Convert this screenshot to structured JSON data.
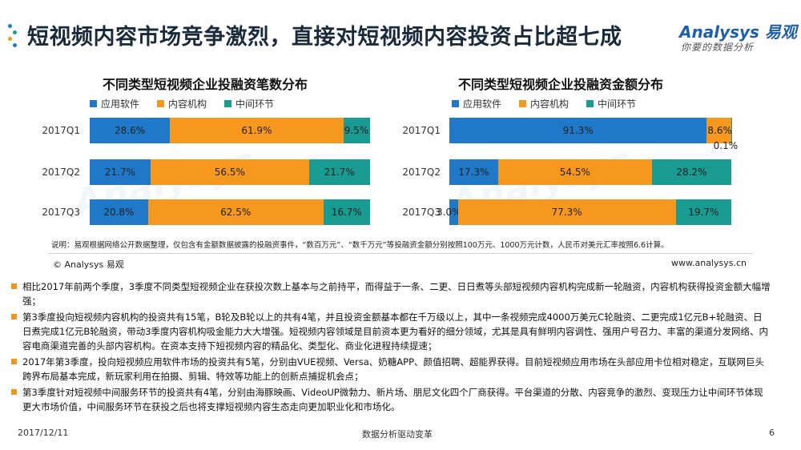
{
  "header": {
    "title": "短视频内容市场竞争激烈，直接对短视频内容投资占比超七成",
    "logo_text": "Analysys 易观",
    "logo_tagline": "你要的数据分析"
  },
  "colors": {
    "app": "#1f78c8",
    "content": "#f5981d",
    "middle": "#1a9b91",
    "accent": "#f0961e"
  },
  "legend": [
    "应用软件",
    "内容机构",
    "中间环节"
  ],
  "chart_data": [
    {
      "type": "bar",
      "orientation": "horizontal",
      "stacked": "percent",
      "title": "不同类型短视频企业投融资笔数分布",
      "categories": [
        "2017Q1",
        "2017Q2",
        "2017Q3"
      ],
      "series": [
        {
          "name": "应用软件",
          "values": [
            28.6,
            21.7,
            20.8
          ],
          "labels": [
            "28.6%",
            "21.7%",
            "20.8%"
          ]
        },
        {
          "name": "内容机构",
          "values": [
            61.9,
            56.5,
            62.5
          ],
          "labels": [
            "61.9%",
            "56.5%",
            "62.5%"
          ]
        },
        {
          "name": "中间环节",
          "values": [
            9.5,
            21.7,
            16.7
          ],
          "labels": [
            "9.5%",
            "21.7%",
            "16.7%"
          ]
        }
      ],
      "xlim": [
        0,
        100
      ],
      "legend_position": "top"
    },
    {
      "type": "bar",
      "orientation": "horizontal",
      "stacked": "percent",
      "title": "不同类型短视频企业投融资金额分布",
      "categories": [
        "2017Q1",
        "2017Q2",
        "2017Q3"
      ],
      "series": [
        {
          "name": "应用软件",
          "values": [
            91.3,
            17.3,
            3.0
          ],
          "labels": [
            "91.3%",
            "17.3%",
            "3.0%"
          ]
        },
        {
          "name": "内容机构",
          "values": [
            8.6,
            54.5,
            77.3
          ],
          "labels": [
            "8.6%",
            "54.5%",
            "77.3%"
          ]
        },
        {
          "name": "中间环节",
          "values": [
            0.1,
            28.2,
            19.7
          ],
          "labels": [
            "0.1%",
            "28.2%",
            "19.7%"
          ]
        }
      ],
      "xlim": [
        0,
        100
      ],
      "legend_position": "top"
    }
  ],
  "note": "说明：易观根据网络公开数据整理，仅包含有金额数据披露的投融资事件，“数百万元”、“数千万元”等投融资金额分别按照100万元、1000万元计数，人民币对美元汇率按照6.6计算。",
  "source": {
    "copyright": "© Analysys 易观",
    "website": "www.analysys.cn"
  },
  "bullets": [
    "相比2017年前两个季度，3季度不同类型短视频企业在获投次数上基本与之前持平，而得益于一条、二更、日日煮等头部短视频内容机构完成新一轮融资，内容机构获得投资金额大幅增强；",
    "第3季度投向短视频内容机构的投资共有15笔，B轮及B轮以上的共有4笔，并且投资金额基本都在千万级以上，其中一条视频完成4000万美元C轮融资、二更完成1亿元B+轮融资、日日煮完成1亿元B轮融资，带动3季度内容机构吸金能力大大增强。短视频内容领域是目前资本更为看好的细分领域，尤其是具有鲜明内容调性、强用户号召力、丰富的渠道分发网络、内容电商渠道完善的头部内容机构。在资本支持下短视频内容的精品化、类型化、商业化进程持续提速；",
    "2017年第3季度，投向短视频应用软件市场的投资共有5笔，分别由VUE视频、Versa、奶糖APP、颜值招聘、超能界获得。目前短视频应用市场在头部应用卡位相对稳定，互联网巨头跨界布局基本完成，新玩家利用在拍摄、剪辑、特效等功能上的创新点捕捉机会点；",
    "第3季度针对短视频中间服务环节的投资共有4笔，分别由海豚映画、VideoUP微勃力、新片场、朋尼文化四个厂商获得。平台渠道的分散、内容竞争的激烈、变现压力让中间环节体现更大市场价值，中间服务环节在获投之后也将支撑短视频内容生态走向更加职业化和市场化。"
  ],
  "footer": {
    "date": "2017/12/11",
    "slogan": "数据分析驱动变革",
    "page": "6"
  }
}
